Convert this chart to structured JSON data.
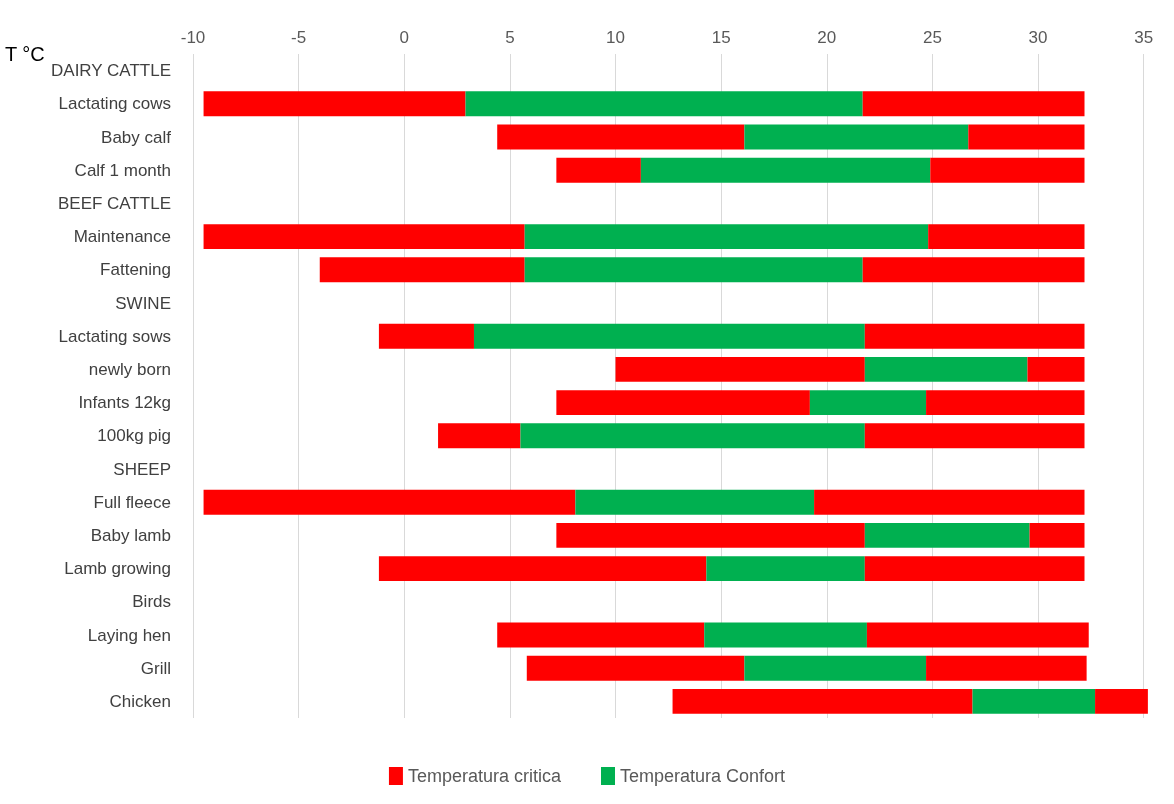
{
  "chart_data": {
    "type": "bar",
    "orientation": "horizontal",
    "xlabel": "T °C",
    "categories": [
      "DAIRY CATTLE",
      "Lactating cows",
      "Baby calf",
      "Calf 1 month",
      "BEEF CATTLE",
      "Maintenance",
      "Fattening",
      "SWINE",
      "Lactating sows",
      "newly born",
      "Infants 12kg",
      "100kg pig",
      "SHEEP",
      "Full fleece",
      "Baby lamb",
      "Lamb growing",
      "Birds",
      "Laying hen",
      "Grill",
      "Chicken"
    ],
    "series": [
      {
        "name": "Temperatura critica",
        "color": "#ff0000",
        "base": [
          null,
          -9.5,
          4.4,
          7.2,
          null,
          -9.5,
          -4.0,
          null,
          -1.2,
          10.0,
          7.2,
          1.6,
          null,
          -9.5,
          7.2,
          -1.2,
          null,
          4.4,
          5.8,
          12.7
        ],
        "values": [
          null,
          12.4,
          11.7,
          4.0,
          null,
          15.2,
          9.7,
          null,
          4.5,
          11.8,
          12.0,
          3.9,
          null,
          17.6,
          14.6,
          15.5,
          null,
          9.8,
          10.3,
          14.2
        ]
      },
      {
        "name": "Temperatura Confort",
        "color": "#00b050",
        "base": [
          null,
          2.9,
          16.1,
          11.2,
          null,
          5.7,
          5.7,
          null,
          3.3,
          21.8,
          19.2,
          5.5,
          null,
          8.1,
          21.8,
          14.3,
          null,
          14.2,
          16.1,
          26.9
        ],
        "values": [
          null,
          18.8,
          10.6,
          13.7,
          null,
          19.1,
          16.0,
          null,
          18.5,
          7.7,
          5.5,
          16.3,
          null,
          11.3,
          7.8,
          7.5,
          null,
          7.7,
          8.6,
          5.8
        ]
      },
      {
        "color": "#ff0000",
        "base": [
          null,
          21.7,
          26.7,
          24.9,
          null,
          24.8,
          21.7,
          null,
          21.8,
          29.5,
          24.7,
          21.8,
          null,
          19.4,
          29.6,
          21.8,
          null,
          21.9,
          24.7,
          32.7
        ],
        "values": [
          null,
          10.5,
          5.5,
          7.3,
          null,
          7.4,
          10.5,
          null,
          10.4,
          2.7,
          7.5,
          10.4,
          null,
          12.8,
          2.6,
          10.4,
          null,
          10.5,
          7.6,
          2.5
        ]
      }
    ],
    "xlim": [
      -10,
      35.3
    ],
    "xticks": [
      -10,
      -5,
      0,
      5,
      10,
      15,
      20,
      25,
      30,
      35
    ],
    "grid": "x",
    "legend": "bottom"
  }
}
